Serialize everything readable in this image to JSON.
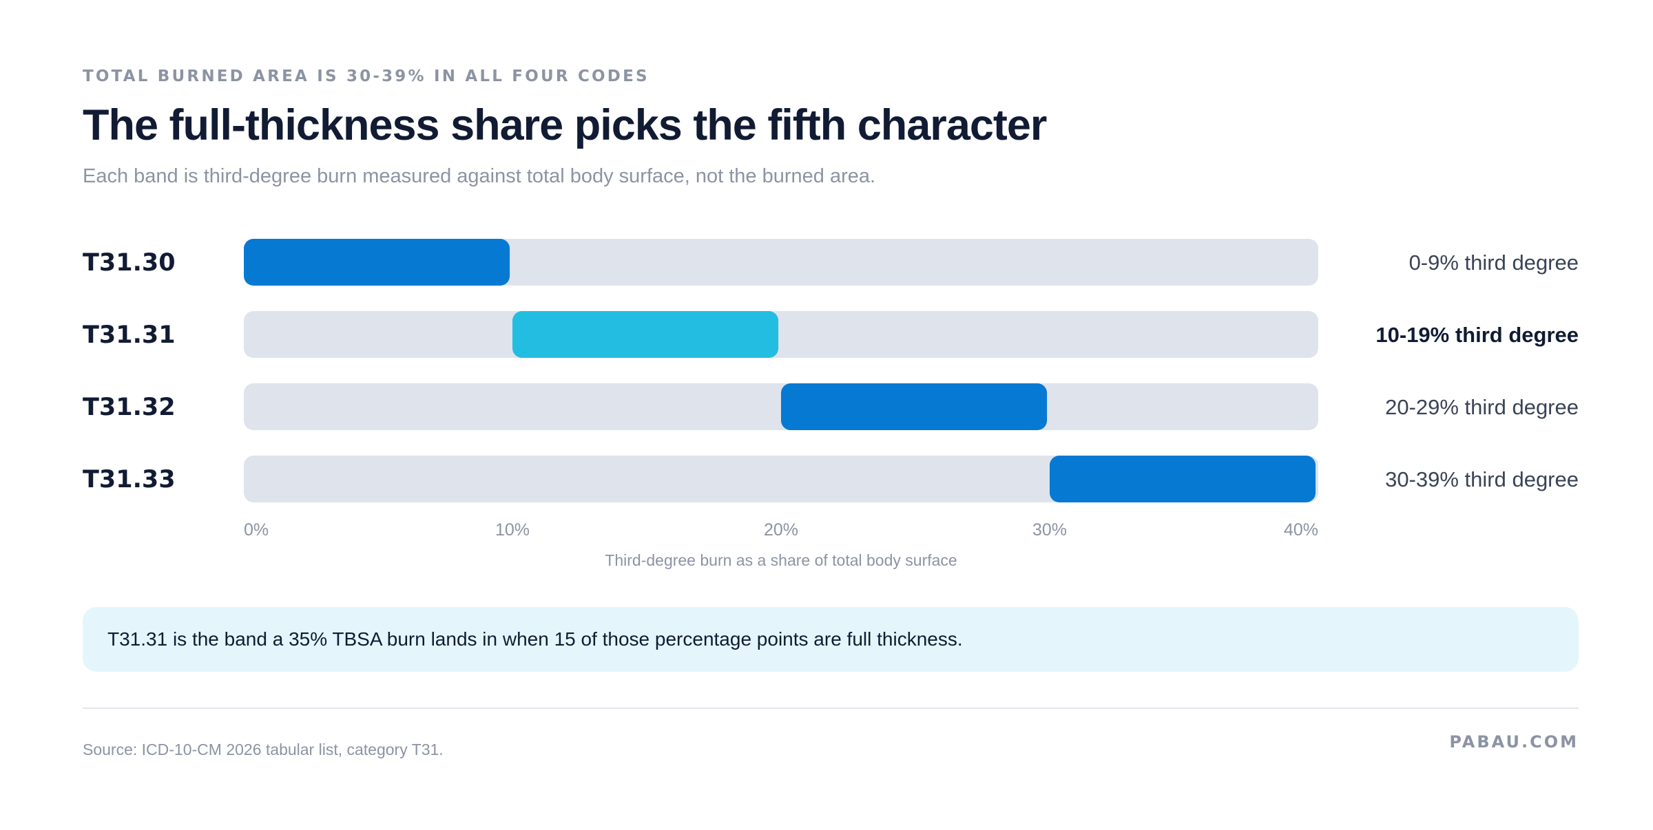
{
  "header": {
    "eyebrow": "TOTAL BURNED AREA IS 30-39% IN ALL FOUR CODES",
    "title": "The full-thickness share picks the fifth character",
    "subtitle": "Each band is third-degree burn measured against total body surface, not the burned area."
  },
  "chart_data": {
    "type": "bar",
    "orientation": "horizontal-range",
    "categories": [
      "T31.30",
      "T31.31",
      "T31.32",
      "T31.33"
    ],
    "series": [
      {
        "ranges": [
          [
            0,
            9
          ],
          [
            10,
            19
          ],
          [
            20,
            29
          ],
          [
            30,
            39
          ]
        ]
      }
    ],
    "range_labels": [
      "0-9% third degree",
      "10-19% third degree",
      "20-29% third degree",
      "30-39% third degree"
    ],
    "highlight": "T31.31",
    "xlim": [
      0,
      40
    ],
    "xticks": [
      "0%",
      "10%",
      "20%",
      "30%",
      "40%"
    ],
    "xlabel": "Third-degree burn as a share of total body surface",
    "grid": false,
    "colors": {
      "bar": "#0679d3",
      "highlight": "#24bde2",
      "track": "#dfe3ec",
      "label": "#111b33",
      "range_label": "#3a4356",
      "axis_text": "#8c93a3"
    }
  },
  "callout": {
    "text": "T31.31 is the band a 35% TBSA burn lands in when 15 of those percentage points are full thickness."
  },
  "footer": {
    "source": "Source: ICD-10-CM 2026 tabular list, category T31.",
    "brand": "PABAU.COM"
  }
}
